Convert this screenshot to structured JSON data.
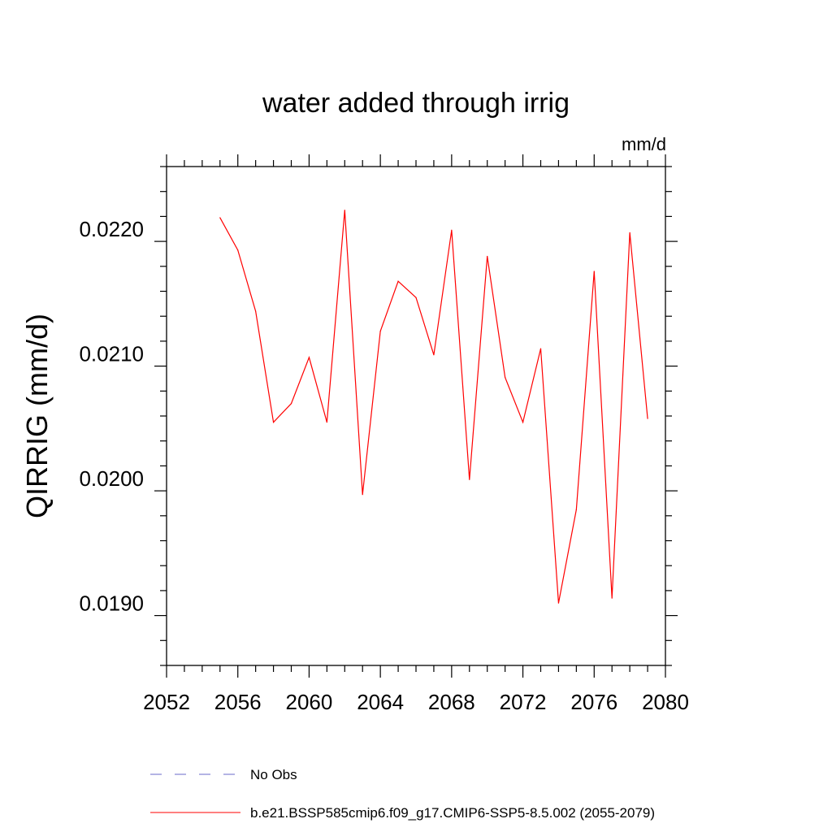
{
  "chart_data": {
    "type": "line",
    "title": "water added through irrig",
    "units": "mm/d",
    "ylabel": "QIRRIG  (mm/d)",
    "xlabel": "",
    "xlim": [
      2052,
      2080
    ],
    "ylim": [
      0.0185,
      0.0225
    ],
    "xticks": [
      2052,
      2056,
      2060,
      2064,
      2068,
      2072,
      2076,
      2080
    ],
    "yticks": [
      0.019,
      0.02,
      0.021,
      0.022
    ],
    "ytick_labels": [
      "0.0190",
      "0.0200",
      "0.0210",
      "0.0220"
    ],
    "series": [
      {
        "name": "b.e21.BSSP585cmip6.f09_g17.CMIP6-SSP5-8.5.002 (2055-2079)",
        "color": "#ff0000",
        "x": [
          2055,
          2056,
          2057,
          2058,
          2059,
          2060,
          2061,
          2062,
          2063,
          2064,
          2065,
          2066,
          2067,
          2068,
          2069,
          2070,
          2071,
          2072,
          2073,
          2074,
          2075,
          2076,
          2077,
          2078,
          2079
        ],
        "y": [
          0.02209,
          0.02183,
          0.02134,
          0.02045,
          0.0206,
          0.02097,
          0.02045,
          0.02215,
          0.01987,
          0.02118,
          0.02158,
          0.02145,
          0.02099,
          0.02199,
          0.01999,
          0.02178,
          0.02081,
          0.02045,
          0.02104,
          0.019,
          0.01975,
          0.02166,
          0.01904,
          0.02197,
          0.02048
        ]
      }
    ],
    "legend": [
      {
        "label": "No Obs",
        "color": "#6a6ac8",
        "style": "dashed"
      },
      {
        "label": "b.e21.BSSP585cmip6.f09_g17.CMIP6-SSP5-8.5.002 (2055-2079)",
        "color": "#ff0000",
        "style": "solid"
      }
    ]
  }
}
